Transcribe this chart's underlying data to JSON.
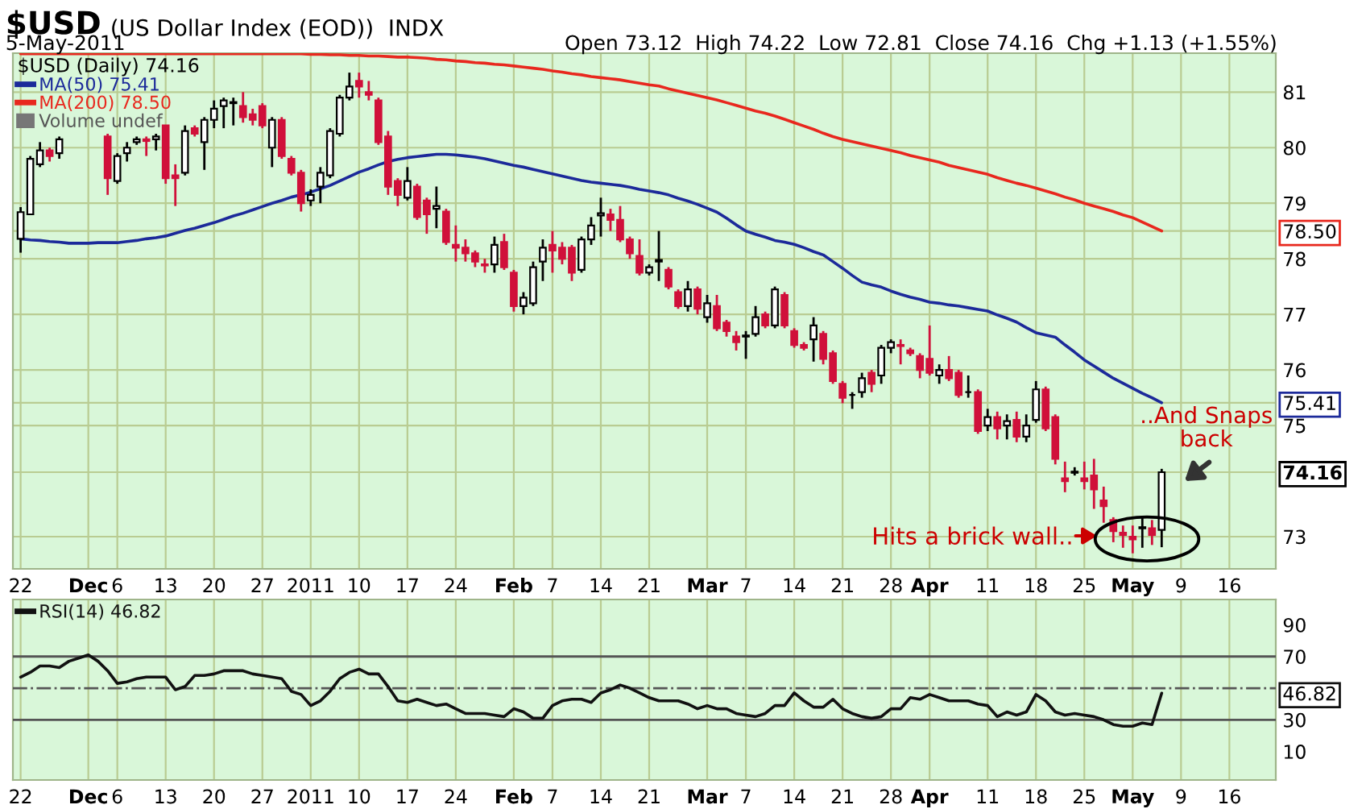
{
  "chart_data": [
    {
      "type": "candlestick",
      "title": "$USD",
      "subtitle": "(US Dollar Index (EOD))  INDX",
      "legend_title": "$USD (Daily) 74.16",
      "legend": "top left",
      "grid": true,
      "annotations": [
        "5-May-2011",
        "Open 73.12  High 74.22  Low 72.81  Close 74.16  Chg +1.13 (+1.55%)",
        "Volume undef",
        "Hits a brick wall..",
        "..And Snaps\nback"
      ],
      "categories": [
        "22",
        null,
        null,
        null,
        null,
        null,
        null,
        "Dec",
        null,
        null,
        "6",
        null,
        null,
        null,
        null,
        "13",
        null,
        null,
        null,
        null,
        "20",
        null,
        null,
        null,
        null,
        "27",
        null,
        null,
        null,
        null,
        "2011",
        null,
        null,
        null,
        null,
        "10",
        null,
        null,
        null,
        null,
        "17",
        null,
        null,
        null,
        null,
        "24",
        null,
        null,
        null,
        null,
        null,
        "Feb",
        null,
        null,
        null,
        "7",
        null,
        null,
        null,
        null,
        "14",
        null,
        null,
        null,
        null,
        "21",
        null,
        null,
        null,
        null,
        null,
        "Mar",
        null,
        null,
        null,
        "7",
        null,
        null,
        null,
        null,
        "14",
        null,
        null,
        null,
        null,
        "21",
        null,
        null,
        null,
        null,
        "28",
        null,
        null,
        null,
        "Apr",
        null,
        null,
        null,
        null,
        null,
        "11",
        null,
        null,
        null,
        null,
        "18",
        null,
        null,
        null,
        null,
        "25",
        null,
        null,
        null,
        null,
        "May",
        null,
        null,
        null,
        null,
        "9",
        null,
        null,
        null,
        null,
        "16",
        null,
        null,
        null,
        null
      ],
      "ylim": [
        72.42,
        81.7
      ],
      "yticks": [
        73,
        {
          "value": 74.16,
          "label": "74.16"
        },
        75,
        {
          "value": 75.41,
          "label": "75.41"
        },
        76,
        77,
        78,
        {
          "value": 78.5,
          "label": "78.50"
        },
        79,
        80,
        81
      ],
      "ohlc": [
        [
          78.36,
          78.93,
          78.11,
          78.84
        ],
        [
          78.8,
          79.85,
          78.8,
          79.8
        ],
        [
          79.7,
          80.1,
          79.65,
          79.95
        ],
        [
          79.95,
          80.0,
          79.75,
          79.85
        ],
        [
          79.9,
          80.2,
          79.8,
          80.15
        ],
        null,
        null,
        null,
        null,
        [
          80.2,
          80.25,
          79.15,
          79.45
        ],
        [
          79.4,
          79.9,
          79.35,
          79.85
        ],
        [
          79.9,
          80.1,
          79.75,
          80.0
        ],
        [
          80.1,
          80.2,
          80.05,
          80.15
        ],
        [
          80.15,
          80.2,
          79.85,
          80.12
        ],
        [
          80.15,
          80.25,
          79.95,
          80.2
        ],
        [
          80.4,
          80.4,
          79.35,
          79.45
        ],
        [
          79.5,
          79.7,
          78.95,
          79.45
        ],
        [
          79.55,
          80.4,
          79.5,
          80.3
        ],
        [
          80.35,
          80.4,
          80.2,
          80.25
        ],
        [
          80.1,
          80.55,
          79.6,
          80.5
        ],
        [
          80.5,
          80.85,
          80.35,
          80.7
        ],
        [
          80.75,
          80.9,
          80.35,
          80.85
        ],
        [
          80.8,
          80.9,
          80.4,
          80.82
        ],
        [
          80.75,
          81.0,
          80.45,
          80.55
        ],
        [
          80.6,
          80.7,
          80.4,
          80.5
        ],
        [
          80.75,
          80.8,
          80.35,
          80.4
        ],
        [
          80.0,
          80.55,
          79.65,
          80.5
        ],
        [
          80.5,
          80.55,
          79.8,
          79.85
        ],
        [
          79.8,
          79.85,
          79.5,
          79.55
        ],
        [
          79.55,
          79.6,
          78.85,
          79.0
        ],
        [
          79.05,
          79.25,
          78.95,
          79.15
        ],
        [
          79.3,
          79.65,
          79.0,
          79.55
        ],
        [
          79.5,
          80.35,
          79.45,
          80.3
        ],
        [
          80.25,
          80.95,
          80.2,
          80.9
        ],
        [
          80.9,
          81.35,
          80.85,
          81.1
        ],
        [
          81.2,
          81.35,
          80.9,
          81.1
        ],
        [
          81.0,
          81.2,
          80.85,
          80.95
        ],
        [
          80.85,
          80.9,
          80.05,
          80.1
        ],
        [
          80.2,
          80.3,
          79.15,
          79.3
        ],
        [
          79.4,
          79.45,
          78.95,
          79.15
        ],
        [
          79.1,
          79.65,
          79.05,
          79.4
        ],
        [
          79.3,
          79.35,
          78.7,
          78.75
        ],
        [
          79.05,
          79.1,
          78.45,
          78.8
        ],
        [
          78.9,
          79.3,
          78.55,
          78.95
        ],
        [
          78.85,
          78.9,
          78.25,
          78.3
        ],
        [
          78.25,
          78.6,
          77.95,
          78.2
        ],
        [
          78.2,
          78.35,
          77.95,
          78.1
        ],
        [
          78.1,
          78.15,
          77.85,
          77.95
        ],
        [
          77.9,
          78.0,
          77.75,
          77.88
        ],
        [
          77.9,
          78.4,
          77.75,
          78.25
        ],
        [
          78.3,
          78.45,
          77.8,
          77.85
        ],
        [
          77.75,
          77.8,
          77.05,
          77.15
        ],
        [
          77.15,
          77.4,
          77.0,
          77.3
        ],
        [
          77.2,
          77.95,
          77.15,
          77.85
        ],
        [
          77.95,
          78.35,
          77.6,
          78.2
        ],
        [
          78.25,
          78.5,
          77.75,
          78.15
        ],
        [
          78.2,
          78.3,
          77.9,
          78.0
        ],
        [
          78.2,
          78.25,
          77.6,
          77.75
        ],
        [
          77.8,
          78.4,
          77.75,
          78.35
        ],
        [
          78.35,
          78.75,
          78.25,
          78.6
        ],
        [
          78.78,
          79.1,
          78.4,
          78.82
        ],
        [
          78.8,
          78.9,
          78.5,
          78.7
        ],
        [
          78.7,
          78.95,
          78.3,
          78.35
        ],
        [
          78.35,
          78.4,
          78.0,
          78.1
        ],
        [
          78.05,
          78.35,
          77.7,
          77.75
        ],
        [
          77.75,
          77.9,
          77.7,
          77.85
        ],
        [
          77.95,
          78.5,
          77.6,
          77.98
        ],
        [
          77.8,
          77.85,
          77.45,
          77.5
        ],
        [
          77.4,
          77.45,
          77.1,
          77.15
        ],
        [
          77.15,
          77.6,
          77.05,
          77.45
        ],
        [
          77.45,
          77.5,
          77.0,
          77.1
        ],
        [
          76.95,
          77.35,
          76.85,
          77.2
        ],
        [
          77.15,
          77.35,
          76.7,
          76.75
        ],
        [
          76.85,
          76.9,
          76.6,
          76.7
        ],
        [
          76.6,
          76.7,
          76.35,
          76.5
        ],
        [
          76.6,
          76.7,
          76.2,
          76.62
        ],
        [
          76.65,
          77.15,
          76.6,
          76.95
        ],
        [
          77.0,
          77.05,
          76.75,
          76.8
        ],
        [
          76.8,
          77.5,
          76.75,
          77.45
        ],
        [
          77.35,
          77.4,
          76.75,
          76.8
        ],
        [
          76.7,
          76.75,
          76.4,
          76.45
        ],
        [
          76.45,
          76.5,
          76.35,
          76.4
        ],
        [
          76.55,
          76.95,
          76.15,
          76.8
        ],
        [
          76.65,
          76.7,
          76.1,
          76.2
        ],
        [
          76.3,
          76.35,
          75.75,
          75.8
        ],
        [
          75.75,
          75.8,
          75.4,
          75.5
        ],
        [
          75.55,
          75.6,
          75.3,
          75.55
        ],
        [
          75.6,
          75.95,
          75.5,
          75.85
        ],
        [
          75.95,
          76.0,
          75.6,
          75.75
        ],
        [
          75.9,
          76.45,
          75.75,
          76.4
        ],
        [
          76.4,
          76.55,
          76.3,
          76.5
        ],
        [
          76.45,
          76.55,
          76.1,
          76.43
        ],
        [
          76.35,
          76.4,
          76.25,
          76.3
        ],
        [
          76.25,
          76.3,
          75.85,
          76.0
        ],
        [
          76.2,
          76.8,
          75.9,
          75.95
        ],
        [
          75.9,
          76.1,
          75.75,
          76.0
        ],
        [
          76.0,
          76.25,
          75.8,
          75.85
        ],
        [
          75.95,
          76.0,
          75.5,
          75.55
        ],
        [
          75.6,
          75.9,
          75.5,
          75.6
        ],
        [
          75.6,
          75.65,
          74.85,
          74.9
        ],
        [
          75.0,
          75.3,
          74.9,
          75.15
        ],
        [
          75.15,
          75.25,
          74.75,
          74.95
        ],
        [
          75.0,
          75.2,
          74.75,
          75.08
        ],
        [
          75.1,
          75.25,
          74.7,
          74.8
        ],
        [
          74.8,
          75.2,
          74.7,
          75.0
        ],
        [
          75.1,
          75.8,
          75.05,
          75.65
        ],
        [
          75.65,
          75.7,
          74.9,
          74.95
        ],
        [
          75.15,
          75.2,
          74.3,
          74.4
        ],
        [
          74.05,
          74.35,
          73.8,
          74.0
        ],
        [
          74.15,
          74.25,
          74.1,
          74.17
        ],
        [
          74.05,
          74.35,
          73.85,
          74.0
        ],
        [
          74.1,
          74.4,
          73.5,
          73.85
        ],
        [
          73.65,
          73.9,
          73.25,
          73.55
        ],
        [
          73.3,
          73.35,
          72.9,
          73.1
        ],
        [
          73.07,
          73.2,
          72.8,
          73.03
        ],
        [
          73.0,
          73.2,
          72.7,
          72.95
        ],
        [
          73.15,
          73.35,
          72.8,
          73.17
        ],
        [
          73.15,
          73.3,
          72.85,
          73.03
        ],
        [
          73.12,
          74.22,
          72.81,
          74.16
        ],
        null,
        null,
        null,
        null,
        null,
        null,
        null,
        null,
        null,
        null,
        null
      ],
      "series": [
        {
          "name": "MA(50) 75.41",
          "type": "line",
          "color": "#1c2a9a",
          "values": [
            78.36,
            78.34,
            78.33,
            78.31,
            78.3,
            78.28,
            78.28,
            78.28,
            78.29,
            78.29,
            78.29,
            78.31,
            78.33,
            78.36,
            78.38,
            78.41,
            78.46,
            78.51,
            78.55,
            78.6,
            78.65,
            78.71,
            78.77,
            78.82,
            78.88,
            78.94,
            79.0,
            79.05,
            79.11,
            79.15,
            79.2,
            79.26,
            79.32,
            79.4,
            79.48,
            79.56,
            79.62,
            79.69,
            79.75,
            79.79,
            79.82,
            79.84,
            79.86,
            79.88,
            79.88,
            79.87,
            79.85,
            79.83,
            79.8,
            79.76,
            79.72,
            79.68,
            79.65,
            79.61,
            79.57,
            79.53,
            79.49,
            79.45,
            79.41,
            79.38,
            79.36,
            79.34,
            79.32,
            79.29,
            79.25,
            79.22,
            79.19,
            79.15,
            79.09,
            79.04,
            78.98,
            78.91,
            78.84,
            78.73,
            78.61,
            78.5,
            78.44,
            78.39,
            78.33,
            78.3,
            78.26,
            78.2,
            78.13,
            78.07,
            77.95,
            77.83,
            77.7,
            77.58,
            77.53,
            77.49,
            77.42,
            77.36,
            77.31,
            77.27,
            77.22,
            77.2,
            77.17,
            77.15,
            77.12,
            77.09,
            77.06,
            76.99,
            76.93,
            76.86,
            76.76,
            76.67,
            76.63,
            76.59,
            76.45,
            76.32,
            76.18,
            76.07,
            75.96,
            75.85,
            75.76,
            75.67,
            75.58,
            75.5,
            75.41,
            null,
            null,
            null,
            null,
            null,
            null,
            null,
            null,
            null,
            null,
            null
          ]
        },
        {
          "name": "MA(200) 78.50",
          "type": "line",
          "color": "#e8281e",
          "values": [
            81.69,
            81.69,
            81.69,
            81.69,
            81.69,
            81.69,
            81.69,
            81.69,
            81.69,
            81.69,
            81.69,
            81.69,
            81.69,
            81.69,
            81.69,
            81.69,
            81.69,
            81.69,
            81.69,
            81.69,
            81.69,
            81.69,
            81.69,
            81.69,
            81.69,
            81.69,
            81.69,
            81.69,
            81.69,
            81.69,
            81.68,
            81.68,
            81.67,
            81.67,
            81.66,
            81.66,
            81.65,
            81.65,
            81.64,
            81.63,
            81.63,
            81.62,
            81.61,
            81.59,
            81.58,
            81.56,
            81.55,
            81.53,
            81.52,
            81.5,
            81.49,
            81.47,
            81.45,
            81.43,
            81.41,
            81.38,
            81.36,
            81.33,
            81.31,
            81.28,
            81.26,
            81.24,
            81.22,
            81.19,
            81.16,
            81.13,
            81.11,
            81.06,
            81.02,
            80.98,
            80.94,
            80.9,
            80.86,
            80.81,
            80.76,
            80.71,
            80.66,
            80.62,
            80.57,
            80.51,
            80.45,
            80.39,
            80.33,
            80.26,
            80.2,
            80.15,
            80.11,
            80.07,
            80.03,
            79.99,
            79.95,
            79.91,
            79.86,
            79.82,
            79.78,
            79.74,
            79.68,
            79.64,
            79.6,
            79.56,
            79.52,
            79.46,
            79.41,
            79.36,
            79.32,
            79.27,
            79.22,
            79.17,
            79.11,
            79.06,
            79.0,
            78.95,
            78.9,
            78.85,
            78.79,
            78.74,
            78.66,
            78.58,
            78.5,
            null,
            null,
            null,
            null,
            null,
            null,
            null,
            null,
            null,
            null,
            null
          ]
        }
      ]
    },
    {
      "type": "line",
      "legend": "top left",
      "grid": "x",
      "categories": [
        "22",
        null,
        null,
        null,
        null,
        null,
        null,
        "Dec",
        null,
        null,
        "6",
        null,
        null,
        null,
        null,
        "13",
        null,
        null,
        null,
        null,
        "20",
        null,
        null,
        null,
        null,
        "27",
        null,
        null,
        null,
        null,
        "2011",
        null,
        null,
        null,
        null,
        "10",
        null,
        null,
        null,
        null,
        "17",
        null,
        null,
        null,
        null,
        "24",
        null,
        null,
        null,
        null,
        null,
        "Feb",
        null,
        null,
        null,
        "7",
        null,
        null,
        null,
        null,
        "14",
        null,
        null,
        null,
        null,
        "21",
        null,
        null,
        null,
        null,
        null,
        "Mar",
        null,
        null,
        null,
        "7",
        null,
        null,
        null,
        null,
        "14",
        null,
        null,
        null,
        null,
        "21",
        null,
        null,
        null,
        null,
        "28",
        null,
        null,
        null,
        "Apr",
        null,
        null,
        null,
        null,
        null,
        "11",
        null,
        null,
        null,
        null,
        "18",
        null,
        null,
        null,
        null,
        "25",
        null,
        null,
        null,
        null,
        "May",
        null,
        null,
        null,
        null,
        "9",
        null,
        null,
        null,
        null,
        "16",
        null,
        null,
        null,
        null
      ],
      "ylim": [
        -8,
        106
      ],
      "yticks": [
        10,
        30,
        {
          "value": 46.82,
          "label": "46.82"
        },
        70,
        90
      ],
      "ref_lines": [
        {
          "axis": "y",
          "value": 70,
          "color": "#555555",
          "line_style": "solid"
        },
        {
          "axis": "y",
          "value": 30,
          "color": "#555555",
          "line_style": "solid"
        },
        {
          "axis": "y",
          "value": 50,
          "color": "#555555",
          "line_style": "dashed"
        }
      ],
      "series": [
        {
          "name": "RSI(14) 46.82",
          "color": "#111111",
          "values": [
            57,
            60,
            64,
            64,
            63,
            67,
            69,
            71,
            67,
            61,
            53,
            54,
            56,
            57,
            57,
            57,
            49,
            51,
            58,
            58,
            59,
            61,
            61,
            61,
            59,
            58,
            57,
            56,
            48,
            46,
            39,
            42,
            48,
            56,
            60,
            62,
            59,
            59,
            51,
            42,
            41,
            43,
            41,
            39,
            40,
            37,
            34,
            34,
            34,
            33,
            32,
            37,
            35,
            31,
            31,
            39,
            42,
            43,
            43,
            41,
            47,
            49,
            52,
            50,
            47,
            44,
            42,
            42,
            42,
            40,
            37,
            39,
            37,
            37,
            34,
            33,
            32,
            34,
            39,
            39,
            47,
            42,
            38,
            38,
            43,
            37,
            34,
            32,
            31,
            32,
            37,
            37,
            44,
            43,
            46,
            44,
            42,
            42,
            42,
            40,
            39,
            32,
            35,
            33,
            35,
            46,
            42,
            35,
            33,
            34,
            33,
            32,
            30,
            27,
            26,
            26,
            28,
            27,
            46.82,
            null,
            null,
            null,
            null,
            null,
            null,
            null,
            null,
            null,
            null,
            null
          ]
        }
      ]
    }
  ]
}
